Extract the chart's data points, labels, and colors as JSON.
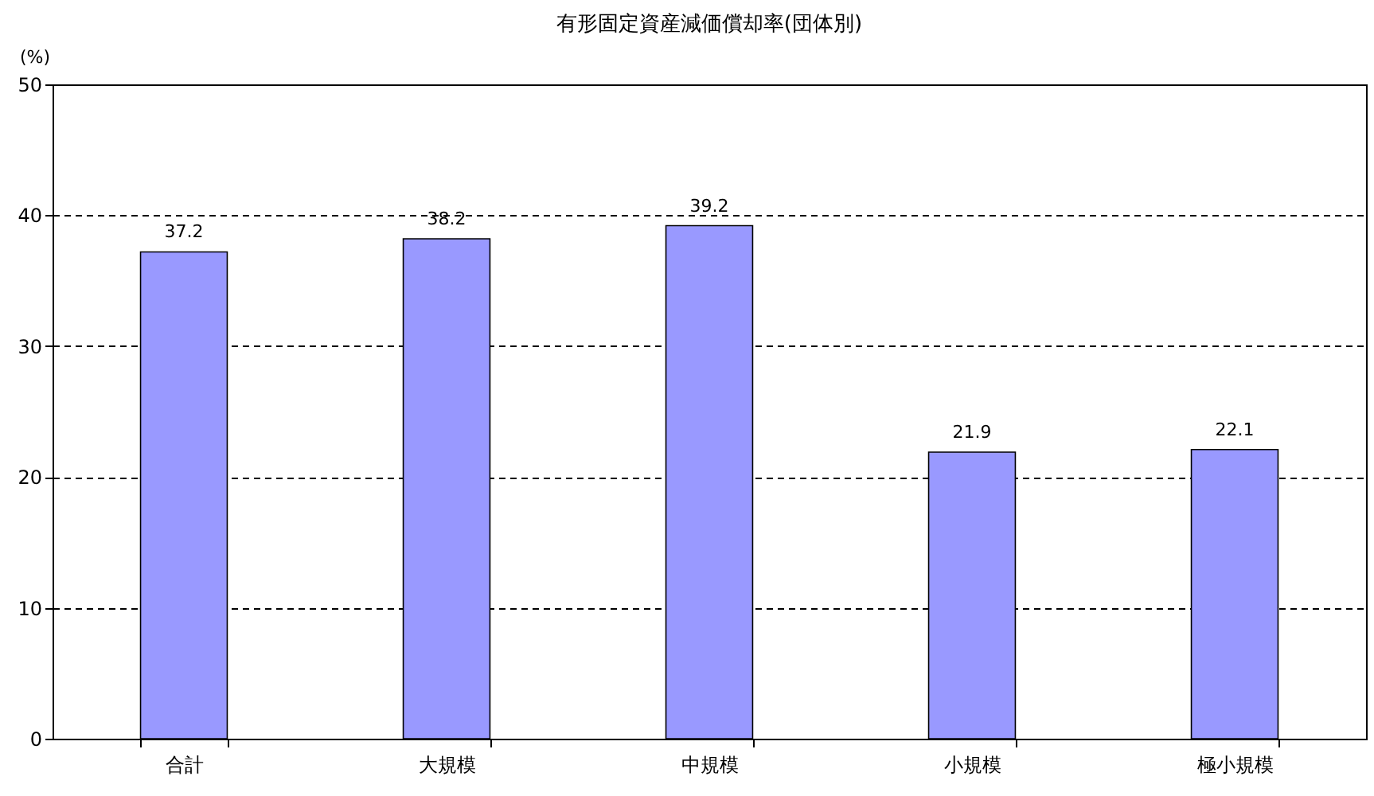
{
  "chart_data": {
    "type": "bar",
    "title": "有形固定資産減価償却率(団体別)",
    "ylabel": "(%)",
    "categories": [
      "合計",
      "大規模",
      "中規模",
      "小規模",
      "極小規模"
    ],
    "values": [
      37.2,
      38.2,
      39.2,
      21.9,
      22.1
    ],
    "color": "#9999ff",
    "ylim": [
      0,
      50
    ],
    "yticks": [
      0,
      10,
      20,
      30,
      40,
      50
    ],
    "grid": "y",
    "data_labels": true
  }
}
